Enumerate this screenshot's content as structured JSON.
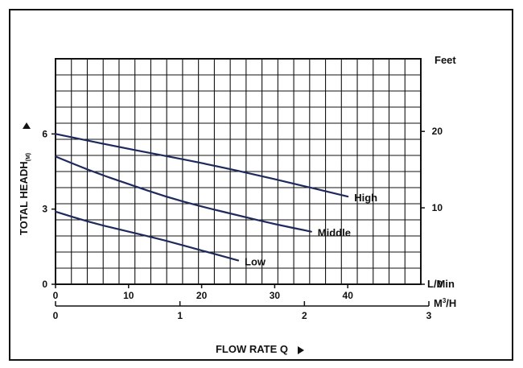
{
  "chart_data": {
    "type": "line",
    "title": "",
    "colors": {
      "grid": "#111111",
      "curve": "#1f2a5c",
      "text": "#111111"
    },
    "grid": true,
    "x_primary": {
      "label": "L/Min",
      "range": [
        0,
        50
      ],
      "ticks": [
        0,
        10,
        20,
        30,
        40
      ],
      "tick_labels": [
        "0",
        "10",
        "20",
        "30",
        "40"
      ]
    },
    "x_secondary": {
      "label_prefix": "M",
      "label_sup": "3",
      "label_suffix": "/H",
      "range": [
        0,
        3
      ],
      "ticks": [
        0,
        1,
        2,
        3
      ],
      "tick_labels": [
        "0",
        "1",
        "2",
        "3"
      ]
    },
    "x_title": "FLOW RATE Q",
    "y_left": {
      "title": "TOTAL HEADH",
      "title_sub": "(M)",
      "range": [
        0,
        9
      ],
      "ticks": [
        0,
        3,
        6
      ],
      "tick_labels": [
        "0",
        "3",
        "6"
      ]
    },
    "y_right": {
      "label": "Feet",
      "range": [
        0,
        29.5
      ],
      "ticks": [
        0,
        10,
        20
      ],
      "tick_labels": [
        "0",
        "10",
        "20"
      ]
    },
    "series": [
      {
        "name": "High",
        "x": [
          0,
          10,
          20,
          30,
          40
        ],
        "y": [
          6.0,
          5.4,
          4.85,
          4.2,
          3.5
        ]
      },
      {
        "name": "Middle",
        "x": [
          0,
          5,
          10,
          15,
          20,
          25,
          30,
          35
        ],
        "y": [
          5.1,
          4.5,
          4.0,
          3.5,
          3.1,
          2.75,
          2.4,
          2.1
        ]
      },
      {
        "name": "Low",
        "x": [
          0,
          5,
          10,
          15,
          20,
          25
        ],
        "y": [
          2.9,
          2.45,
          2.1,
          1.75,
          1.35,
          0.95
        ]
      }
    ]
  }
}
